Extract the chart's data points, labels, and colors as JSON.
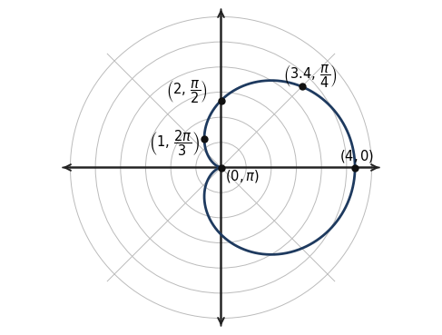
{
  "curve_color": "#1e3a5f",
  "curve_linewidth": 2.0,
  "grid_color": "#bbbbbb",
  "axis_color": "#222222",
  "dot_color": "#111111",
  "dot_size": 5,
  "bg_color": "#ffffff",
  "num_circles": 6,
  "circle_step": 0.75,
  "grid_angles_deg": [
    45,
    135
  ],
  "axis_limit": 4.8,
  "figsize": [
    4.87,
    3.69
  ],
  "dpi": 100,
  "label_fontsize": 10.5
}
